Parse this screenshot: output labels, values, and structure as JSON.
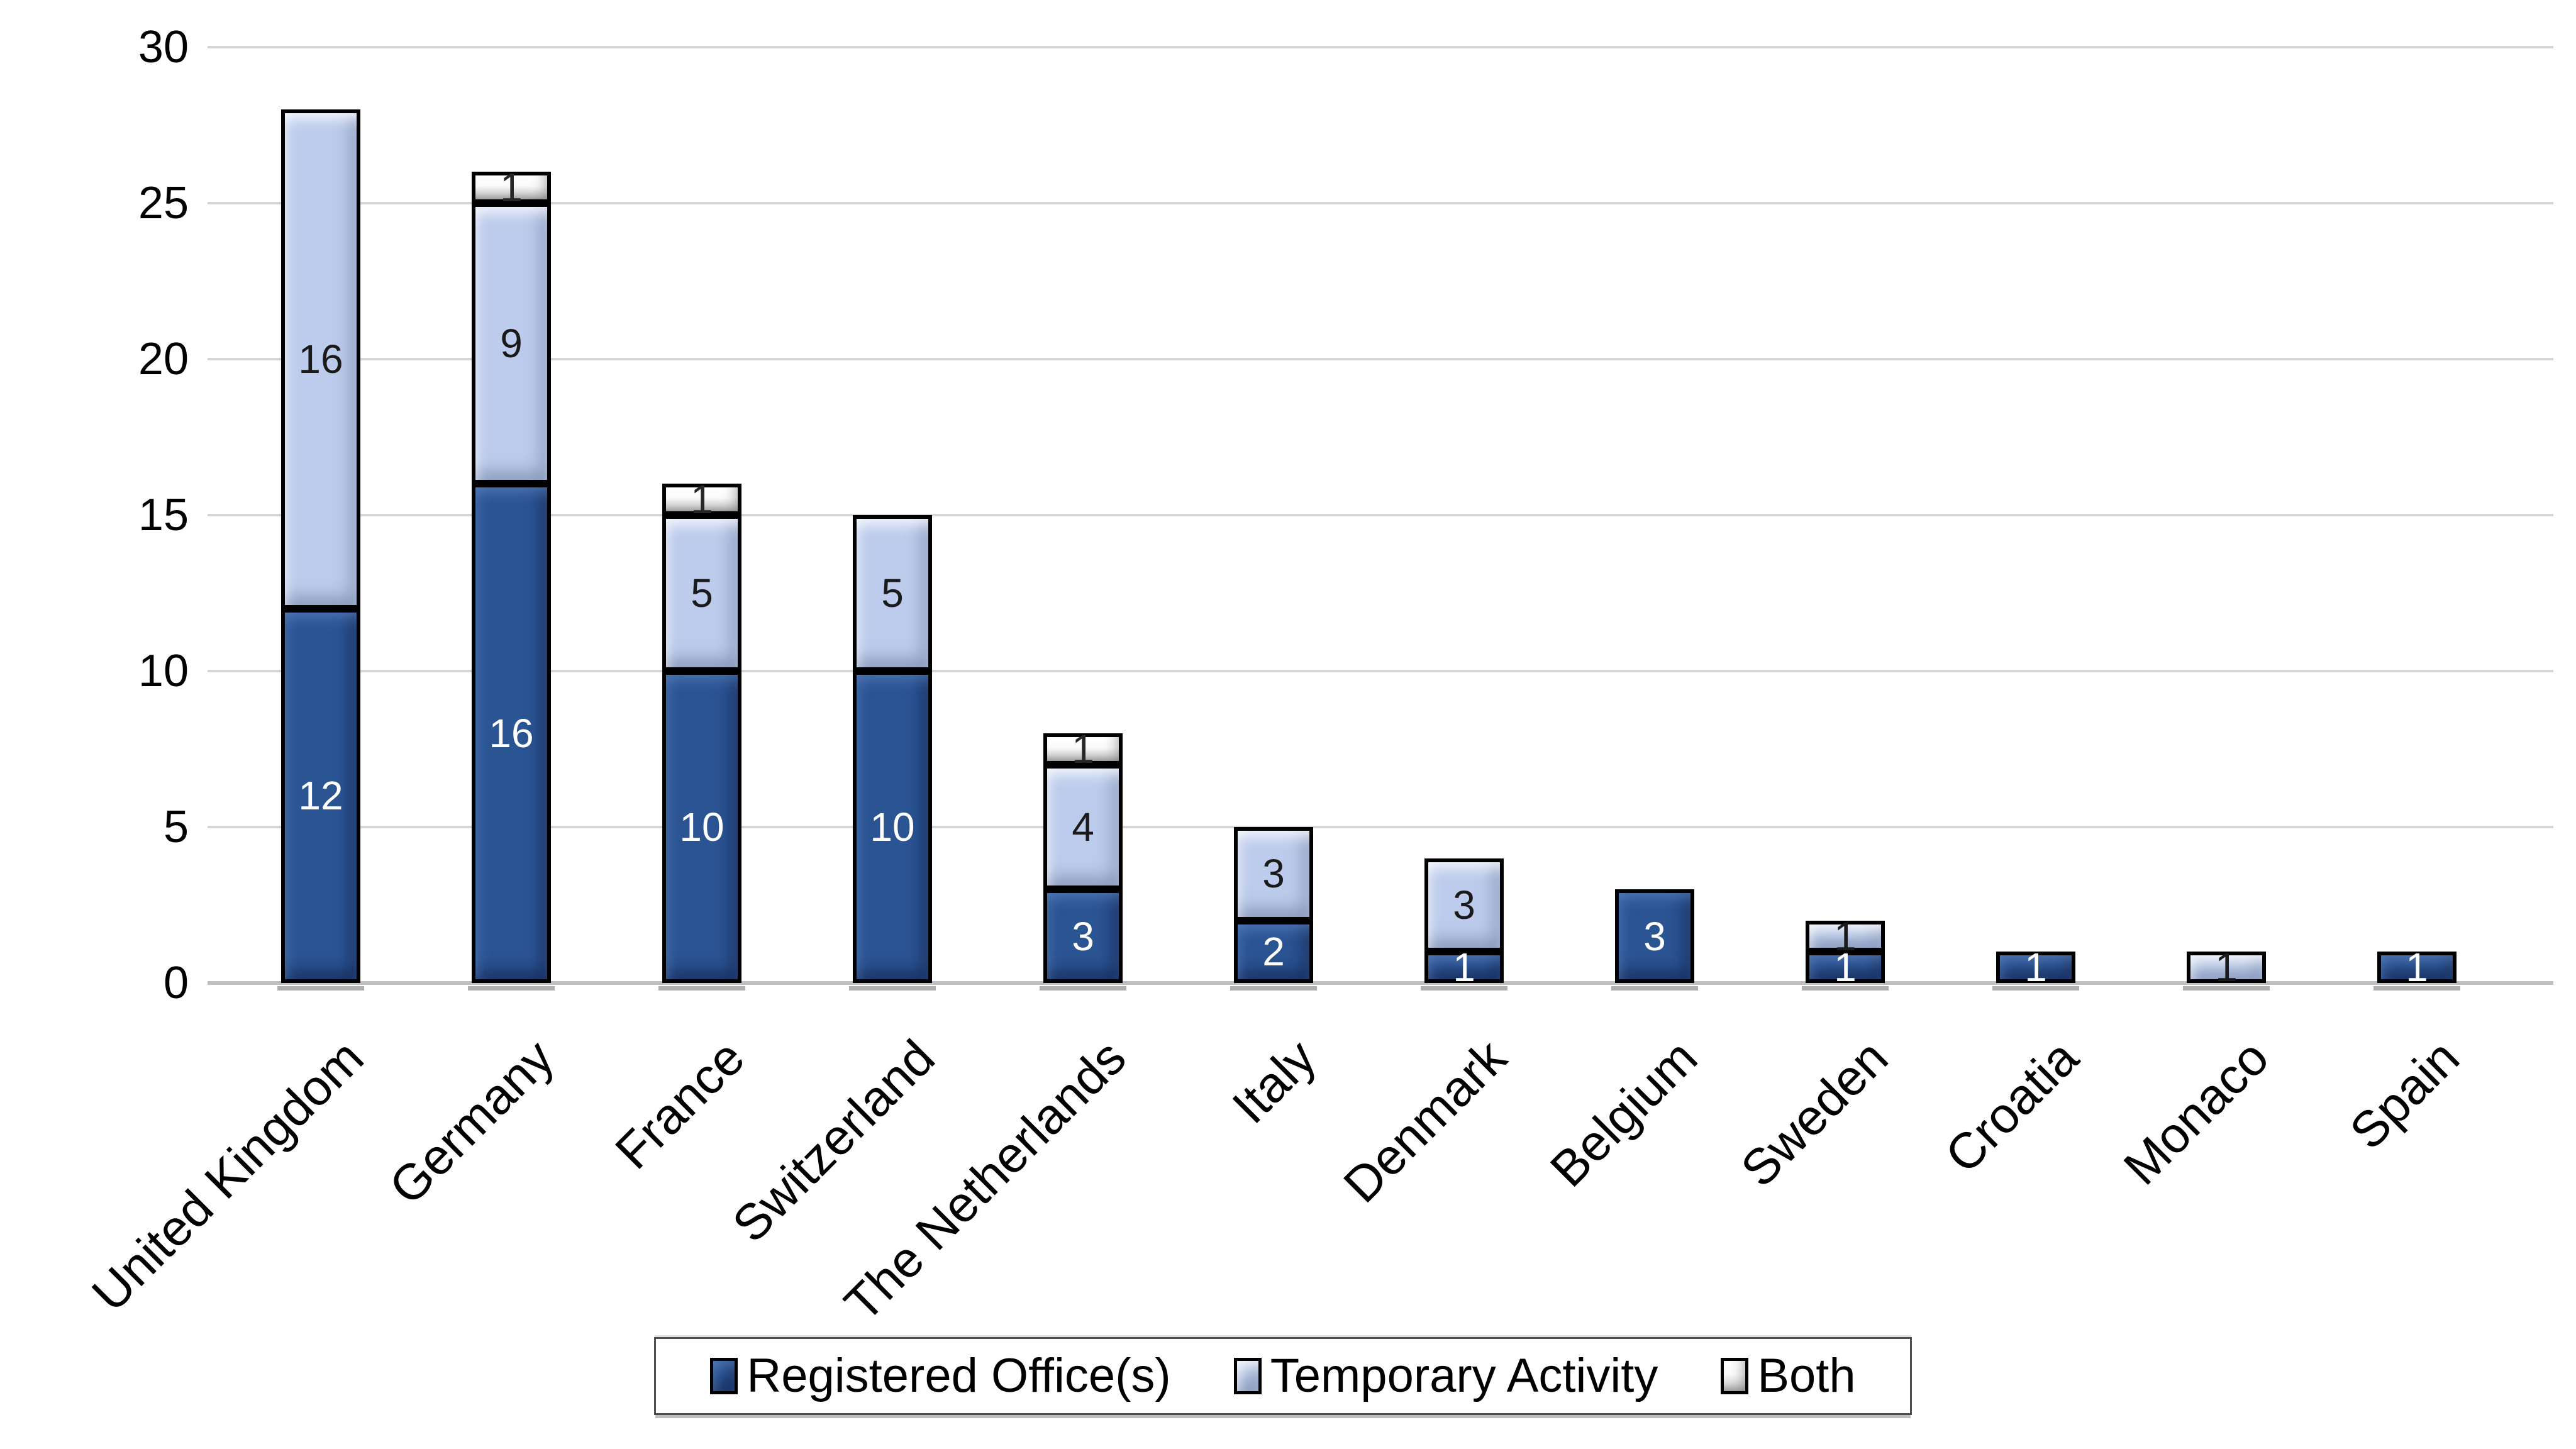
{
  "chart_data": {
    "type": "bar",
    "stacked": true,
    "title": "",
    "xlabel": "",
    "ylabel": "",
    "categories": [
      "United Kingdom",
      "Germany",
      "France",
      "Switzerland",
      "The Netherlands",
      "Italy",
      "Denmark",
      "Belgium",
      "Sweden",
      "Croatia",
      "Monaco",
      "Spain"
    ],
    "series": [
      {
        "name": "Registered Office(s)",
        "color": "#2b5493",
        "values": [
          12,
          16,
          10,
          10,
          3,
          2,
          1,
          3,
          1,
          1,
          0,
          1
        ]
      },
      {
        "name": "Temporary Activity",
        "color": "#bdccec",
        "values": [
          16,
          9,
          5,
          5,
          4,
          3,
          3,
          0,
          1,
          0,
          1,
          0
        ]
      },
      {
        "name": "Both",
        "color": "#f0f0f0",
        "values": [
          0,
          1,
          1,
          0,
          1,
          0,
          0,
          0,
          0,
          0,
          0,
          0
        ]
      }
    ],
    "ylim": [
      0,
      30
    ],
    "yticks": [
      0,
      5,
      10,
      15,
      20,
      25,
      30
    ],
    "grid": true,
    "gridline_color": "#d6d6d6",
    "axis_line_color": "#bfbfbf",
    "segment_border_color": "#000000",
    "legend_position": "bottom",
    "value_labels": "shown inside segments, white on dark blue, black on light segments"
  }
}
